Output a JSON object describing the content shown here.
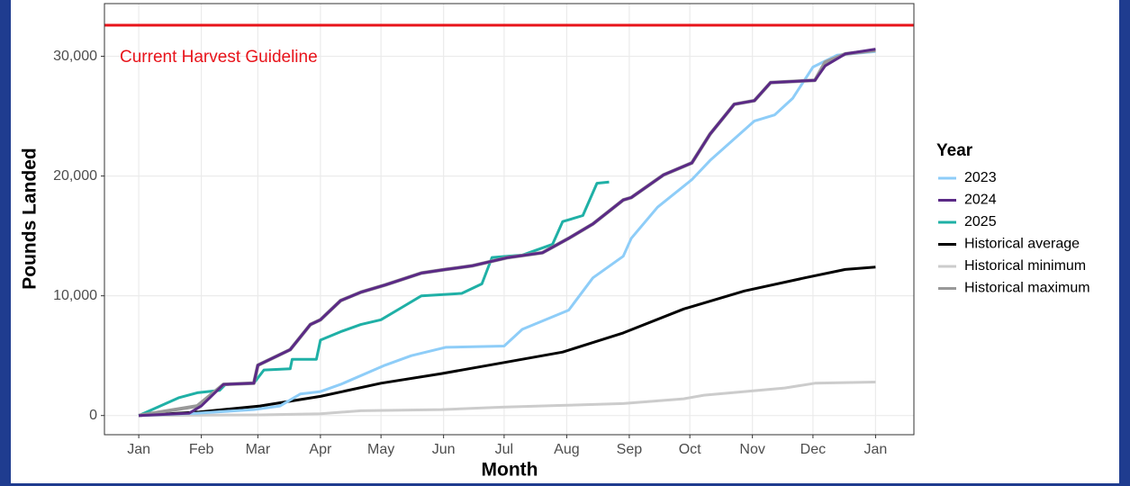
{
  "chart_data": {
    "type": "line",
    "xlabel": "Month",
    "ylabel": "Pounds Landed",
    "annotation": "Current Harvest Guideline",
    "hline": {
      "value": 32600,
      "color": "#e8141b"
    },
    "legend_title": "Year",
    "legend": "right",
    "grid": true,
    "xlim": [
      -17,
      384
    ],
    "ylim": [
      -1600,
      34400
    ],
    "xticks": [
      {
        "value": 0,
        "label": "Jan"
      },
      {
        "value": 31,
        "label": "Feb"
      },
      {
        "value": 59,
        "label": "Mar"
      },
      {
        "value": 90,
        "label": "Apr"
      },
      {
        "value": 120,
        "label": "May"
      },
      {
        "value": 151,
        "label": "Jun"
      },
      {
        "value": 181,
        "label": "Jul"
      },
      {
        "value": 212,
        "label": "Aug"
      },
      {
        "value": 243,
        "label": "Sep"
      },
      {
        "value": 273,
        "label": "Oct"
      },
      {
        "value": 304,
        "label": "Nov"
      },
      {
        "value": 334,
        "label": "Dec"
      },
      {
        "value": 365,
        "label": "Jan"
      }
    ],
    "yticks": [
      0,
      {
        "value": 10000,
        "label": "10,000"
      },
      {
        "value": 20000,
        "label": "20,000"
      },
      {
        "value": 30000,
        "label": "30,000"
      }
    ],
    "series": [
      {
        "name": "2023",
        "color": "#8ecdf8",
        "width": 3,
        "x": [
          0,
          29,
          57,
          70,
          80,
          90,
          100,
          122,
          135,
          152,
          181,
          190,
          213,
          225,
          240,
          244,
          257,
          274,
          283,
          305,
          315,
          324,
          334,
          346,
          365
        ],
        "values": [
          0,
          200,
          500,
          800,
          1800,
          2000,
          2600,
          4200,
          5000,
          5700,
          5800,
          7200,
          8800,
          11500,
          13300,
          14800,
          17400,
          19700,
          21300,
          24600,
          25100,
          26500,
          29100,
          30100,
          30400
        ]
      },
      {
        "name": "2024",
        "color": "#5b2a86",
        "width": 3,
        "x": [
          0,
          25,
          31,
          42,
          57,
          59,
          75,
          85,
          90,
          100,
          110,
          122,
          140,
          152,
          165,
          183,
          200,
          213,
          225,
          240,
          244,
          260,
          274,
          283,
          295,
          305,
          313,
          335,
          340,
          350,
          365
        ],
        "values": [
          0,
          200,
          800,
          2600,
          2700,
          4200,
          5500,
          7600,
          8000,
          9600,
          10300,
          10900,
          11900,
          12200,
          12500,
          13200,
          13600,
          14800,
          16000,
          18000,
          18200,
          20100,
          21100,
          23500,
          26000,
          26300,
          27800,
          28000,
          29200,
          30200,
          30600
        ]
      },
      {
        "name": "2025",
        "color": "#1fb0a6",
        "width": 3,
        "x": [
          0,
          20,
          29,
          40,
          43,
          57,
          62,
          75,
          76,
          88,
          90,
          100,
          110,
          120,
          130,
          140,
          160,
          170,
          175,
          190,
          205,
          210,
          220,
          227,
          233
        ],
        "values": [
          0,
          1500,
          1900,
          2100,
          2600,
          2700,
          3800,
          3900,
          4700,
          4700,
          6300,
          7000,
          7600,
          8000,
          9000,
          10000,
          10200,
          11000,
          13200,
          13400,
          14300,
          16200,
          16700,
          19400,
          19500
        ]
      },
      {
        "name": "Historical average",
        "color": "#000000",
        "width": 3,
        "x": [
          0,
          30,
          60,
          90,
          120,
          150,
          180,
          210,
          240,
          270,
          300,
          330,
          350,
          365
        ],
        "values": [
          0,
          300,
          800,
          1600,
          2700,
          3500,
          4400,
          5300,
          6900,
          8900,
          10400,
          11500,
          12200,
          12400
        ]
      },
      {
        "name": "Historical minimum",
        "color": "#cccccc",
        "width": 3,
        "x": [
          0,
          60,
          90,
          110,
          150,
          180,
          210,
          240,
          270,
          280,
          300,
          320,
          335,
          365
        ],
        "values": [
          0,
          50,
          150,
          400,
          500,
          700,
          850,
          1000,
          1400,
          1700,
          2000,
          2300,
          2700,
          2800
        ]
      },
      {
        "name": "Historical maximum",
        "color": "#999999",
        "width": 4,
        "x": [
          0,
          29,
          42,
          57,
          59,
          75,
          85,
          90,
          100,
          110,
          122,
          140,
          152,
          165,
          183,
          200,
          213,
          225,
          240,
          244,
          260,
          274,
          283,
          295,
          305,
          313,
          335,
          340,
          350,
          365
        ],
        "values": [
          0,
          800,
          2600,
          2700,
          4200,
          5500,
          7600,
          8000,
          9600,
          10300,
          10900,
          11900,
          12200,
          12500,
          13200,
          13600,
          14800,
          16000,
          18000,
          18200,
          20100,
          21100,
          23500,
          26000,
          26300,
          27800,
          28000,
          29500,
          30200,
          30500
        ]
      }
    ]
  }
}
